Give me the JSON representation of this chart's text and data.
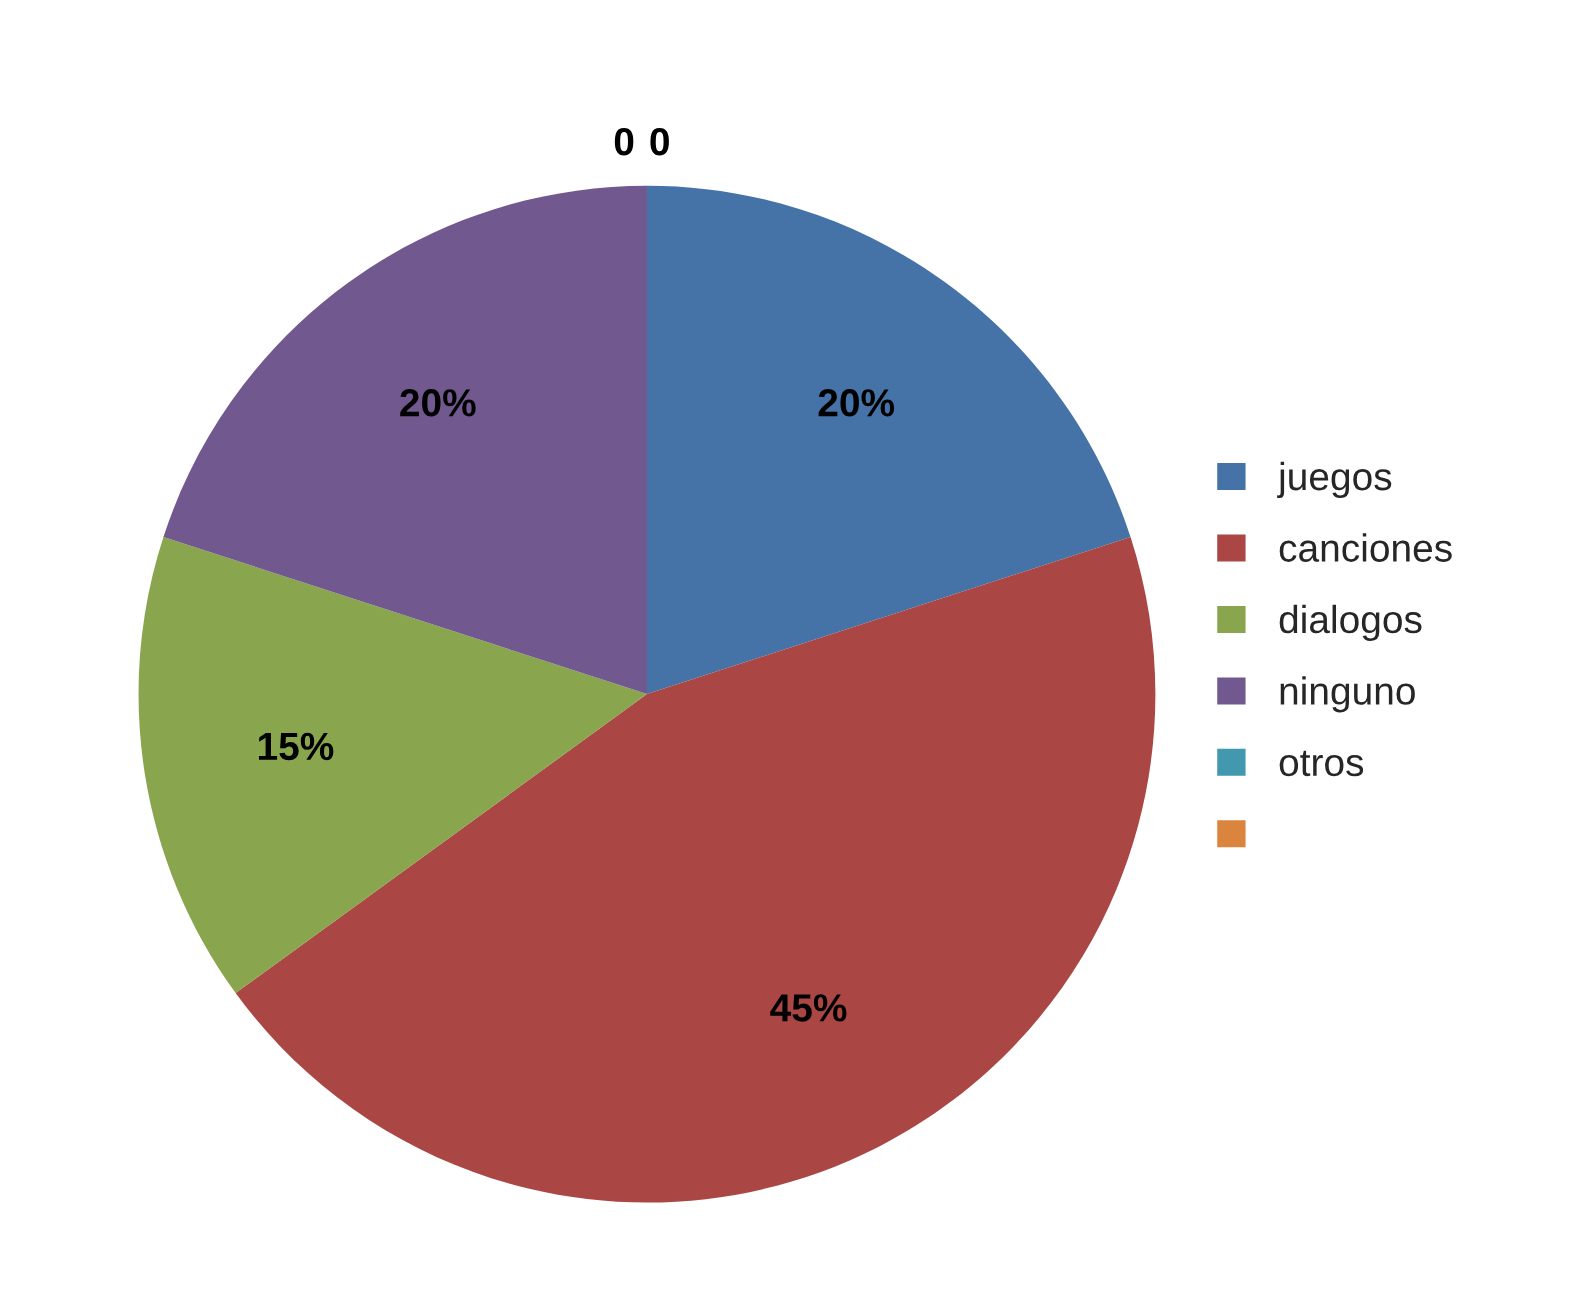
{
  "chart_data": {
    "type": "pie",
    "categories": [
      "juegos",
      "canciones",
      "dialogos",
      "ninguno",
      "otros",
      null
    ],
    "values": [
      20,
      45,
      15,
      20,
      0,
      0
    ],
    "value_labels": [
      "20%",
      "45%",
      "15%",
      "20%",
      "0",
      "0"
    ],
    "colors": [
      "#4572a7",
      "#aa4643",
      "#89a54e",
      "#71588f",
      "#4198af",
      "#db843d"
    ],
    "legend": "right"
  }
}
